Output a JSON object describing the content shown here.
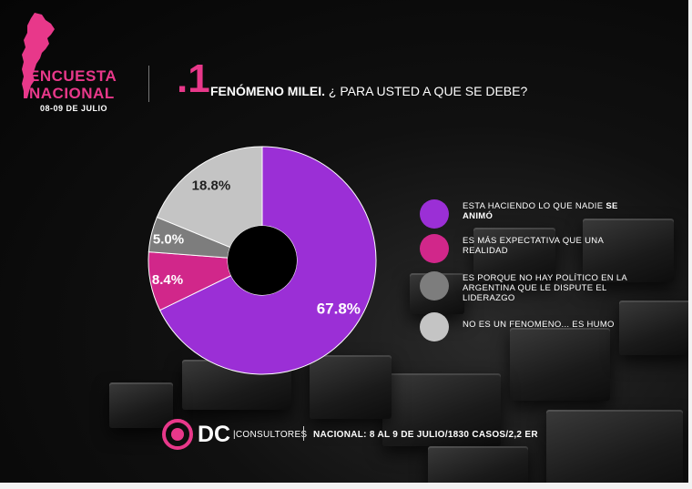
{
  "header": {
    "brand_line1": "ENCUESTA",
    "brand_line2": "NACIONAL",
    "brand_date": "08-09 DE JULIO",
    "question_number": ".1",
    "question_title": "FENÓMENO MILEI.",
    "question_text": " ¿ PARA USTED A QUE SE DEBE?"
  },
  "colors": {
    "accent": "#e8388a",
    "purple": "#9b2fd6",
    "pink": "#d1278a",
    "gray_dark": "#7d7d7d",
    "gray_light": "#c4c4c4",
    "background": "#0a0a0a"
  },
  "chart_data": {
    "type": "pie",
    "style": "donut",
    "title": "FENÓMENO MILEI. ¿ PARA USTED A QUE SE DEBE?",
    "slices": [
      {
        "label": "ESTA HACIENDO LO QUE NADIE SE ANIMÓ",
        "label_normal": "ESTA HACIENDO LO QUE NADIE ",
        "label_bold": "SE ANIMÓ",
        "value": 67.8,
        "display": "67.8%",
        "color": "#9b2fd6"
      },
      {
        "label": "ES MÁS EXPECTATIVA QUE UNA REALIDAD",
        "label_normal": "ES MÁS EXPECTATIVA QUE UNA REALIDAD",
        "label_bold": "",
        "value": 8.4,
        "display": "8.4%",
        "color": "#d1278a"
      },
      {
        "label": "ES PORQUE NO HAY POLÍTICO EN LA ARGENTINA QUE LE DISPUTE EL LIDERAZGO",
        "label_normal": "ES PORQUE NO HAY POLÍTICO EN LA ARGENTINA QUE LE DISPUTE EL LIDERAZGO",
        "label_bold": "",
        "value": 5.0,
        "display": "5.0%",
        "color": "#7d7d7d"
      },
      {
        "label": "NO ES UN FENOMENO... ES HUMO",
        "label_normal": "NO ES UN FENOMENO... ES HUMO",
        "label_bold": "",
        "value": 18.8,
        "display": "18.8%",
        "color": "#c4c4c4"
      }
    ],
    "legend_position": "right"
  },
  "footer": {
    "brand": "DC",
    "brand_sub": "|CONSULTORES",
    "info": "NACIONAL: 8 AL 9 DE JULIO/1830 CASOS/2,2 ER"
  }
}
